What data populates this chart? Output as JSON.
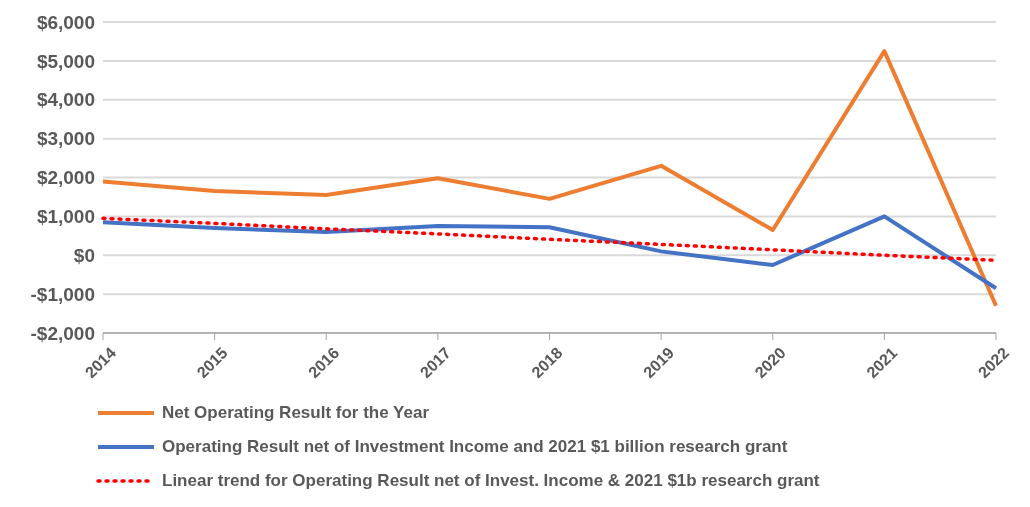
{
  "chart_data": {
    "type": "line",
    "categories": [
      "2014",
      "2015",
      "2016",
      "2017",
      "2018",
      "2019",
      "2020",
      "2021",
      "2022"
    ],
    "series": [
      {
        "name": "Net Operating Result for the Year",
        "color": "#ed7d31",
        "values": [
          1900,
          1650,
          1550,
          1980,
          1450,
          2300,
          650,
          5250,
          -1300
        ]
      },
      {
        "name": "Operating Result net of Investment Income and 2021 $1 billion research grant",
        "color": "#4472c4",
        "values": [
          850,
          700,
          600,
          750,
          720,
          100,
          -250,
          1000,
          -850
        ]
      },
      {
        "name": "Linear trend for Operating Result net of Invest. Income & 2021 $1b research grant",
        "color": "#ff0000",
        "line_style": "dotted",
        "values": [
          950,
          820,
          680,
          550,
          410,
          280,
          140,
          0,
          -130
        ]
      }
    ],
    "ylim": [
      -2000,
      6000
    ],
    "yticks": [
      {
        "value": -2000,
        "label": "-$2,000"
      },
      {
        "value": -1000,
        "label": "-$1,000"
      },
      {
        "value": 0,
        "label": "$0"
      },
      {
        "value": 1000,
        "label": "$1,000"
      },
      {
        "value": 2000,
        "label": "$2,000"
      },
      {
        "value": 3000,
        "label": "$3,000"
      },
      {
        "value": 4000,
        "label": "$4,000"
      },
      {
        "value": 5000,
        "label": "$5,000"
      },
      {
        "value": 6000,
        "label": "$6,000"
      }
    ],
    "grid": "y",
    "legend": "bottom",
    "marker": "none",
    "line_style": "solid"
  }
}
